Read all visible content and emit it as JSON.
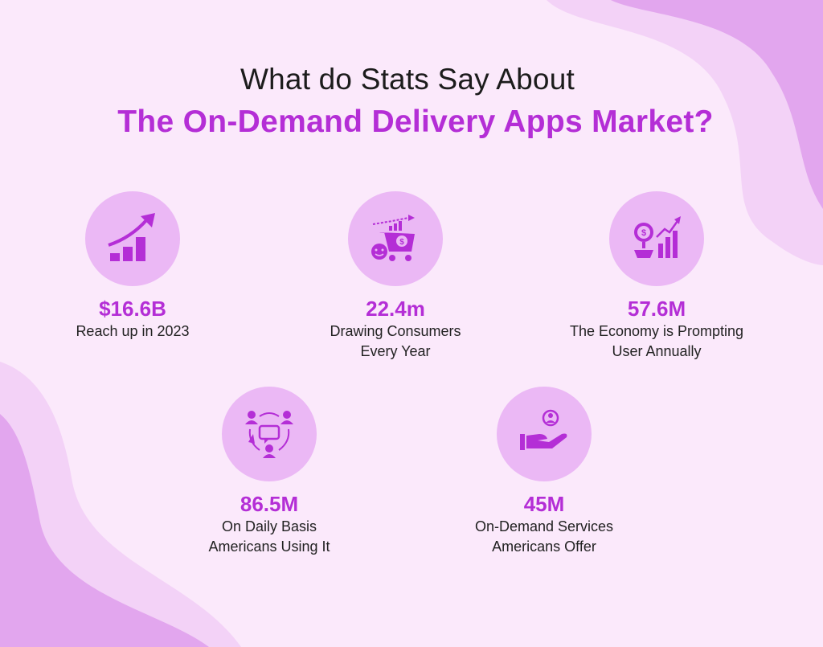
{
  "heading": {
    "line1": "What do Stats Say About",
    "line2": "The On-Demand Delivery Apps Market?"
  },
  "colors": {
    "accent": "#b42ed6",
    "circle": "#ebb8f5",
    "background": "#fbe9fb",
    "blob": "#e2a6ee"
  },
  "stats": [
    {
      "icon": "growth-chart-icon",
      "value": "$16.6B",
      "desc_line1": "Reach up in 2023",
      "desc_line2": ""
    },
    {
      "icon": "shopping-cart-icon",
      "value": "22.4m",
      "desc_line1": "Drawing Consumers",
      "desc_line2": "Every Year"
    },
    {
      "icon": "money-growth-icon",
      "value": "57.6M",
      "desc_line1": "The Economy is Prompting",
      "desc_line2": "User Annually"
    },
    {
      "icon": "people-network-icon",
      "value": "86.5M",
      "desc_line1": "On Daily Basis",
      "desc_line2": "Americans Using It"
    },
    {
      "icon": "hand-user-icon",
      "value": "45M",
      "desc_line1": "On-Demand Services",
      "desc_line2": "Americans Offer"
    }
  ]
}
